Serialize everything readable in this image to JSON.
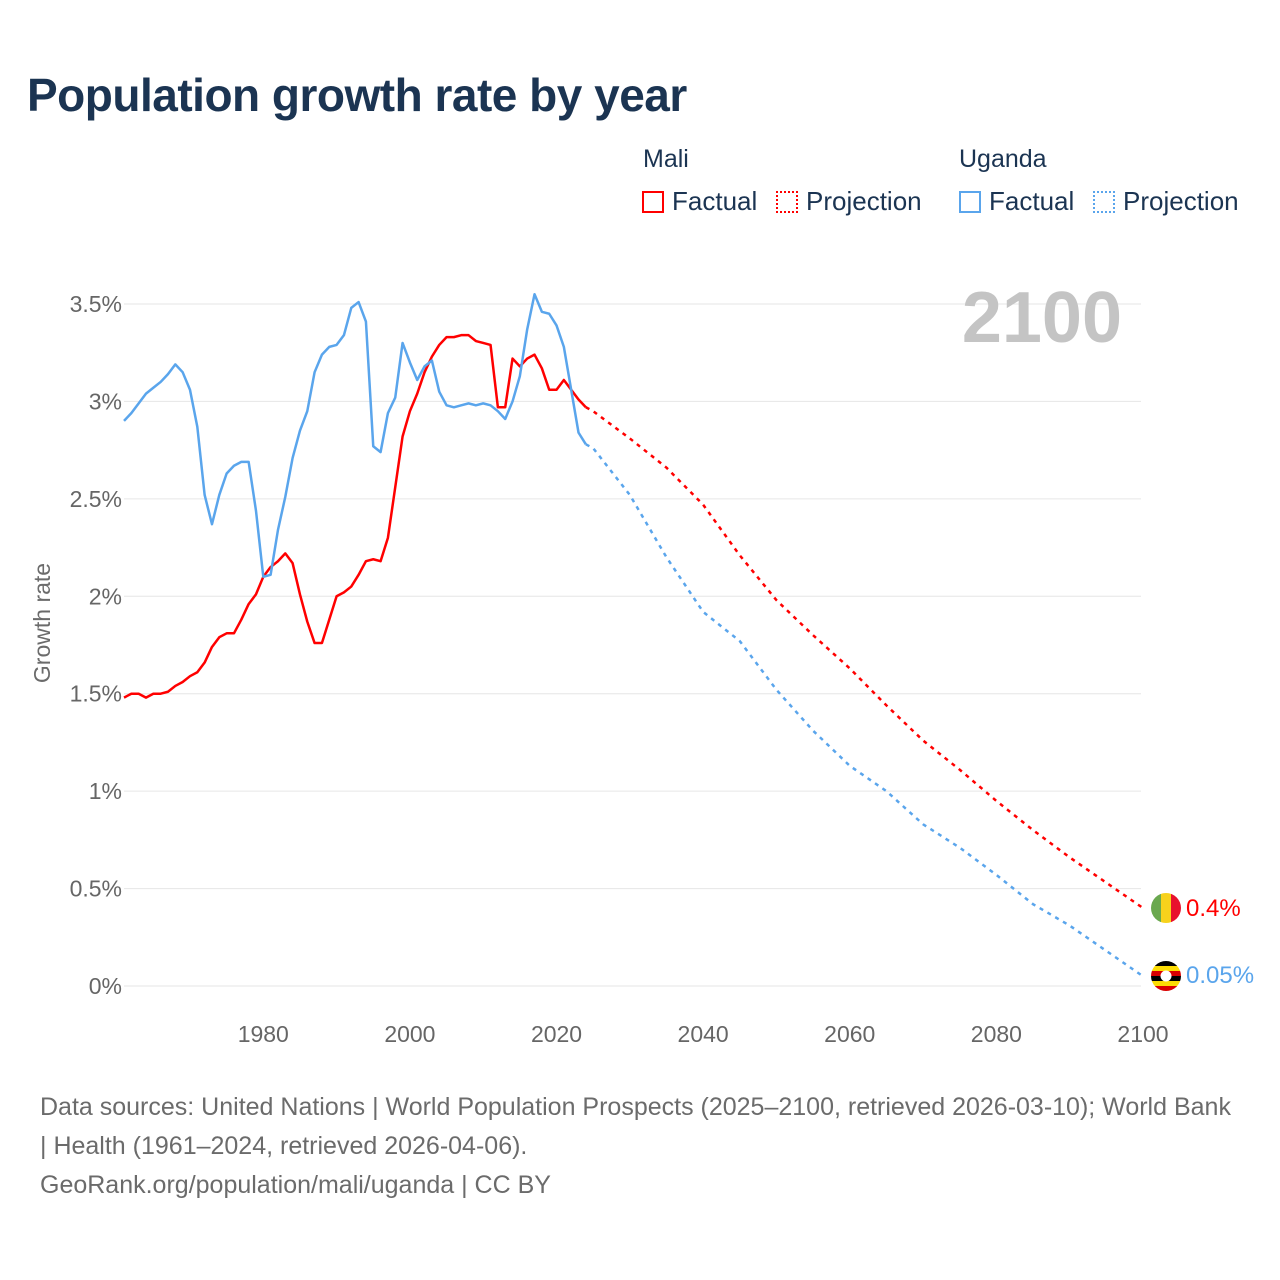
{
  "chart_data": {
    "type": "line",
    "title": "Population growth rate by year",
    "ylabel": "Growth rate",
    "xlabel": "",
    "xlim": [
      1961,
      2100
    ],
    "ylim": [
      0,
      3.5
    ],
    "x_ticks": [
      1980,
      2000,
      2020,
      2040,
      2060,
      2080,
      2100
    ],
    "x_tick_labels": [
      "1980",
      "2000",
      "2020",
      "2040",
      "2060",
      "2080",
      "2100"
    ],
    "y_ticks": [
      0,
      0.5,
      1,
      1.5,
      2,
      2.5,
      3,
      3.5
    ],
    "y_tick_labels": [
      "0%",
      "0.5%",
      "1%",
      "1.5%",
      "2%",
      "2.5%",
      "3%",
      "3.5%"
    ],
    "grid": true,
    "year_watermark": "2100",
    "legend": {
      "placement": "top-right",
      "groups": [
        {
          "name": "Mali",
          "factual": "Factual",
          "projection": "Projection"
        },
        {
          "name": "Uganda",
          "factual": "Factual",
          "projection": "Projection"
        }
      ]
    },
    "series": [
      {
        "name": "Mali",
        "color": "#ff0000",
        "end_label": "0.4%",
        "factual": {
          "x_start": 1961,
          "values": [
            1.48,
            1.5,
            1.5,
            1.48,
            1.5,
            1.5,
            1.51,
            1.54,
            1.56,
            1.59,
            1.61,
            1.66,
            1.74,
            1.79,
            1.81,
            1.81,
            1.88,
            1.96,
            2.01,
            2.1,
            2.15,
            2.18,
            2.22,
            2.17,
            2.01,
            1.87,
            1.76,
            1.76,
            1.88,
            2.0,
            2.02,
            2.05,
            2.11,
            2.18,
            2.19,
            2.18,
            2.3,
            2.56,
            2.82,
            2.95,
            3.04,
            3.15,
            3.23,
            3.29,
            3.33,
            3.33,
            3.34,
            3.34,
            3.31,
            3.3,
            3.29,
            2.97,
            2.97,
            3.22,
            3.18,
            3.22,
            3.24,
            3.17,
            3.06,
            3.06,
            3.11,
            3.06,
            3.01,
            2.97
          ]
        },
        "projection": {
          "x": [
            2024,
            2025,
            2030,
            2035,
            2040,
            2045,
            2050,
            2055,
            2060,
            2065,
            2070,
            2075,
            2080,
            2085,
            2090,
            2095,
            2100
          ],
          "values": [
            2.97,
            2.95,
            2.81,
            2.66,
            2.47,
            2.21,
            1.98,
            1.8,
            1.63,
            1.44,
            1.26,
            1.11,
            0.95,
            0.8,
            0.66,
            0.53,
            0.4
          ]
        }
      },
      {
        "name": "Uganda",
        "color": "#5aa5ec",
        "end_label": "0.05%",
        "factual": {
          "x_start": 1961,
          "values": [
            2.9,
            2.94,
            2.99,
            3.04,
            3.07,
            3.1,
            3.14,
            3.19,
            3.15,
            3.06,
            2.87,
            2.52,
            2.37,
            2.52,
            2.63,
            2.67,
            2.69,
            2.69,
            2.44,
            2.1,
            2.11,
            2.34,
            2.51,
            2.71,
            2.85,
            2.95,
            3.15,
            3.24,
            3.28,
            3.29,
            3.34,
            3.48,
            3.51,
            3.41,
            2.77,
            2.74,
            2.94,
            3.02,
            3.3,
            3.2,
            3.11,
            3.18,
            3.21,
            3.05,
            2.98,
            2.97,
            2.98,
            2.99,
            2.98,
            2.99,
            2.98,
            2.95,
            2.91,
            3.0,
            3.13,
            3.37,
            3.55,
            3.46,
            3.45,
            3.39,
            3.28,
            3.06,
            2.84,
            2.78
          ]
        },
        "projection": {
          "x": [
            2024,
            2025,
            2030,
            2035,
            2040,
            2045,
            2050,
            2055,
            2060,
            2065,
            2070,
            2075,
            2080,
            2085,
            2090,
            2095,
            2100
          ],
          "values": [
            2.78,
            2.76,
            2.52,
            2.2,
            1.92,
            1.77,
            1.52,
            1.31,
            1.13,
            1.0,
            0.83,
            0.71,
            0.57,
            0.42,
            0.31,
            0.18,
            0.05
          ]
        }
      }
    ]
  },
  "footer": {
    "line1": "Data sources: United Nations | World Population Prospects (2025–2100, retrieved 2026-03-10); World Bank | Health (1961–2024, retrieved 2026-04-06).",
    "line2": "GeoRank.org/population/mali/uganda | CC BY"
  }
}
